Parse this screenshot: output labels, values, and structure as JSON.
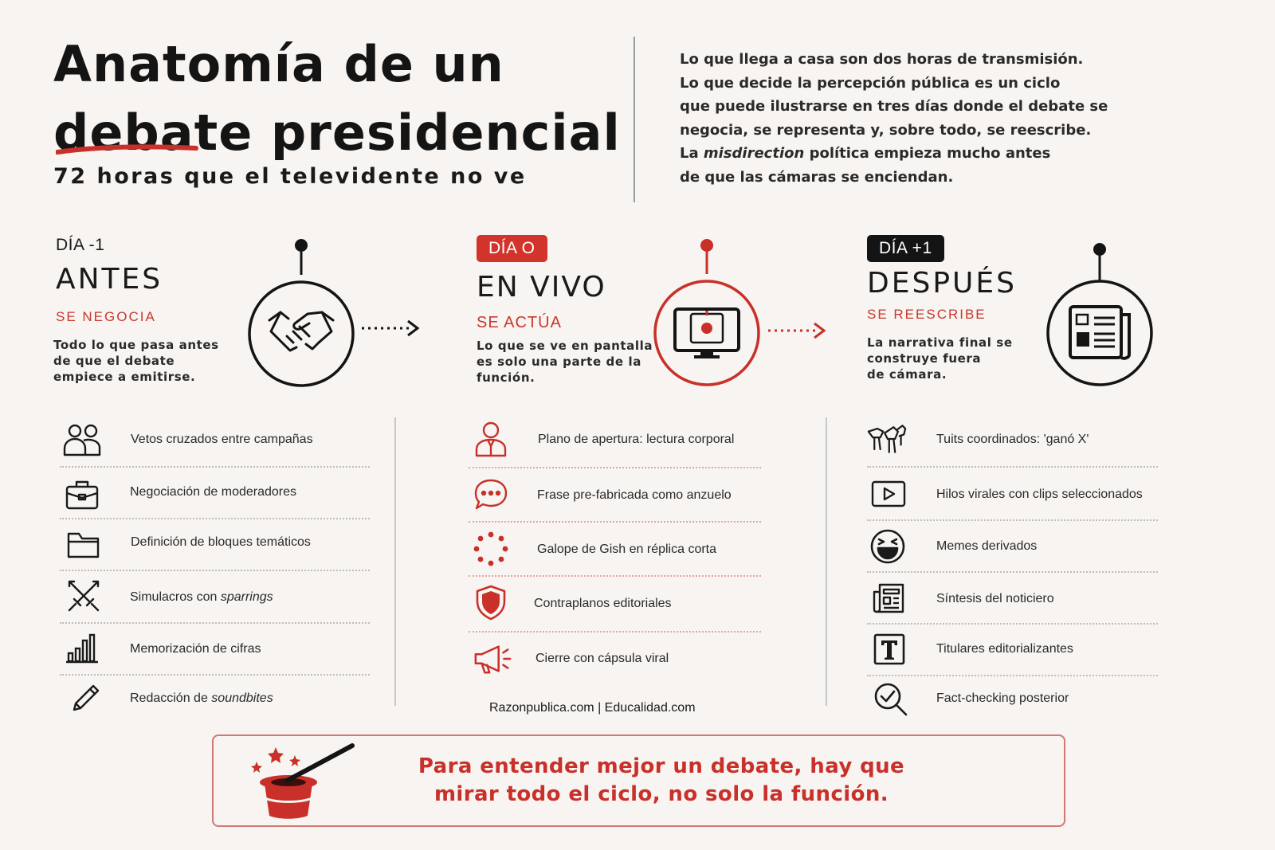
{
  "header": {
    "title_line1": "Anatomía de un",
    "title_line2": "debate presidencial",
    "subtitle": "72 horas que el televidente no ve",
    "intro_lines": [
      "Lo que llega a casa son dos horas de transmisión.",
      "Lo que decide la percepción pública es un ciclo",
      "que puede ilustrarse en tres días donde el debate se",
      "negocia, se representa y, sobre todo, se reescribe."
    ],
    "intro_line5_pre": "La ",
    "intro_line5_em": "misdirection",
    "intro_line5_post": " política empieza mucho antes",
    "intro_line6": "de que las cámaras se enciendan."
  },
  "stages": [
    {
      "day": "DÍA -1",
      "title": "ANTES",
      "subtitle": "SE NEGOCIA",
      "description": [
        "Todo lo que pasa antes",
        "de que el debate",
        "empiece a emitirse."
      ],
      "icon": "handshake-icon",
      "items": [
        {
          "label": "Vetos cruzados entre campañas",
          "icon": "people-icon"
        },
        {
          "label": "Negociación de moderadores",
          "icon": "briefcase-icon"
        },
        {
          "label": "Definición de bloques temáticos",
          "icon": "folder-icon"
        },
        {
          "pre": "Simulacros con ",
          "em": "sparrings",
          "icon": "crossed-swords-icon"
        },
        {
          "label": "Memorización de cifras",
          "icon": "bar-chart-icon"
        },
        {
          "pre": "Redacción de ",
          "em": "soundbites",
          "icon": "pencil-icon"
        }
      ]
    },
    {
      "day": "DÍA O",
      "title": "EN VIVO",
      "subtitle": "SE ACTÚA",
      "description": [
        "Lo que se ve en pantalla",
        "es solo una parte de la",
        "función."
      ],
      "icon": "monitor-icon",
      "items": [
        {
          "label": "Plano de apertura: lectura corporal",
          "icon": "person-bust-icon"
        },
        {
          "label": "Frase pre-fabricada como anzuelo",
          "icon": "speech-bubble-icon"
        },
        {
          "label": "Galope de Gish en réplica corta",
          "icon": "dotted-circle-icon"
        },
        {
          "label": "Contraplanos editoriales",
          "icon": "shield-icon"
        },
        {
          "label": "Cierre con cápsula viral",
          "icon": "megaphone-icon"
        }
      ]
    },
    {
      "day": "DÍA +1",
      "title": "DESPUÉS",
      "subtitle": "SE REESCRIBE",
      "description": [
        "La narrativa final se",
        "construye fuera",
        "de cámara."
      ],
      "icon": "newspaper-icon",
      "items": [
        {
          "label": "Tuits coordinados: 'ganó X'",
          "icon": "birds-icon"
        },
        {
          "label": "Hilos virales con clips seleccionados",
          "icon": "play-icon"
        },
        {
          "label": "Memes derivados",
          "icon": "laughing-face-icon"
        },
        {
          "label": "Síntesis del noticiero",
          "icon": "news-doc-icon"
        },
        {
          "label": "Titulares editorializantes",
          "icon": "text-t-icon"
        },
        {
          "label": "Fact-checking posterior",
          "icon": "magnifier-check-icon"
        }
      ]
    }
  ],
  "credit": "Razonpublica.com | Educalidad.com",
  "callout": {
    "line1": "Para entender mejor un debate, hay que",
    "line2": "mirar todo el ciclo, no solo la función.",
    "icon": "magic-hat-icon"
  },
  "colors": {
    "accent": "#c9382e",
    "badge_red": "#d2342b",
    "dark": "#141414",
    "background": "#f7f4f1"
  }
}
